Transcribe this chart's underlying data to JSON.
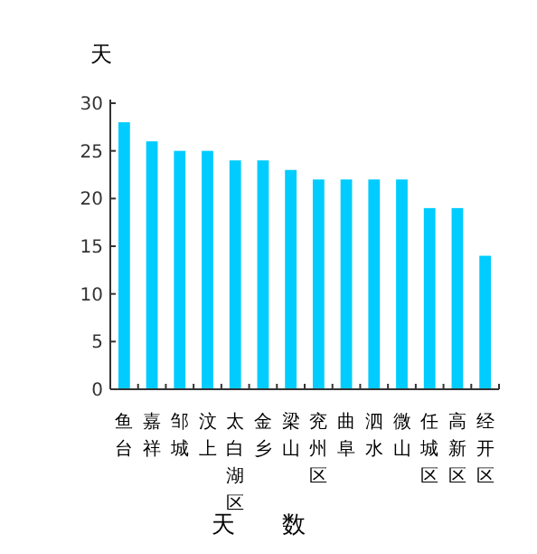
{
  "chart_data": {
    "type": "bar",
    "ylabel": "天",
    "xlabel": "天数",
    "categories": [
      "鱼台",
      "嘉祥",
      "邹城",
      "汶上",
      "太白湖区",
      "金乡",
      "梁山",
      "兖州区",
      "曲阜",
      "泗水",
      "微山",
      "任城区",
      "高新区",
      "经开区"
    ],
    "values": [
      28,
      26,
      25,
      25,
      24,
      24,
      23,
      22,
      22,
      22,
      22,
      19,
      19,
      14
    ],
    "color": "#00ccff",
    "ylim": [
      0,
      30
    ],
    "yticks": [
      0,
      5,
      10,
      15,
      20,
      25,
      30
    ],
    "grid": false
  }
}
